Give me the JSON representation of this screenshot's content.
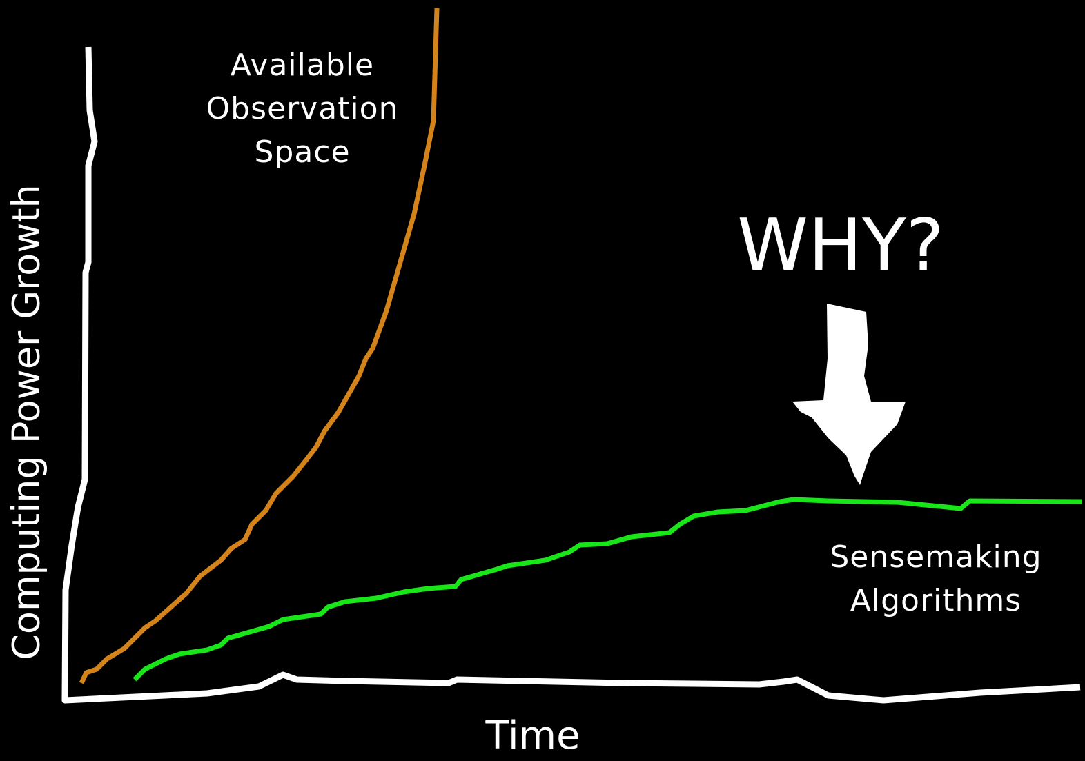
{
  "axes": {
    "y_label": "Computing Power Growth",
    "x_label": "Time"
  },
  "curves": [
    {
      "label": [
        "Available",
        "Observation",
        "Space"
      ]
    },
    {
      "label": [
        "Sensemaking",
        "Algorithms"
      ]
    }
  ],
  "annotation": "WHY?"
}
